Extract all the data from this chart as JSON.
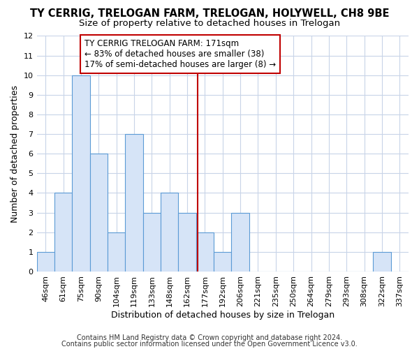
{
  "title": "TY CERRIG, TRELOGAN FARM, TRELOGAN, HOLYWELL, CH8 9BE",
  "subtitle": "Size of property relative to detached houses in Trelogan",
  "xlabel": "Distribution of detached houses by size in Trelogan",
  "ylabel": "Number of detached properties",
  "categories": [
    "46sqm",
    "61sqm",
    "75sqm",
    "90sqm",
    "104sqm",
    "119sqm",
    "133sqm",
    "148sqm",
    "162sqm",
    "177sqm",
    "192sqm",
    "206sqm",
    "221sqm",
    "235sqm",
    "250sqm",
    "264sqm",
    "279sqm",
    "293sqm",
    "308sqm",
    "322sqm",
    "337sqm"
  ],
  "values": [
    1,
    4,
    10,
    6,
    2,
    7,
    3,
    4,
    3,
    2,
    1,
    3,
    0,
    0,
    0,
    0,
    0,
    0,
    0,
    1,
    0
  ],
  "bar_color": "#d6e4f7",
  "bar_edge_color": "#5b9bd5",
  "ylim": [
    0,
    12
  ],
  "yticks": [
    0,
    1,
    2,
    3,
    4,
    5,
    6,
    7,
    8,
    9,
    10,
    11,
    12
  ],
  "vline_x": 8.57,
  "vline_color": "#c00000",
  "annotation_text": "TY CERRIG TRELOGAN FARM: 171sqm\n← 83% of detached houses are smaller (38)\n17% of semi-detached houses are larger (8) →",
  "annotation_box_color": "#ffffff",
  "annotation_box_edge": "#c00000",
  "footer1": "Contains HM Land Registry data © Crown copyright and database right 2024.",
  "footer2": "Contains public sector information licensed under the Open Government Licence v3.0.",
  "background_color": "#ffffff",
  "grid_color": "#c8d4e8",
  "title_fontsize": 10.5,
  "subtitle_fontsize": 9.5,
  "axis_label_fontsize": 9,
  "tick_fontsize": 8,
  "footer_fontsize": 7,
  "ann_fontsize": 8.5
}
